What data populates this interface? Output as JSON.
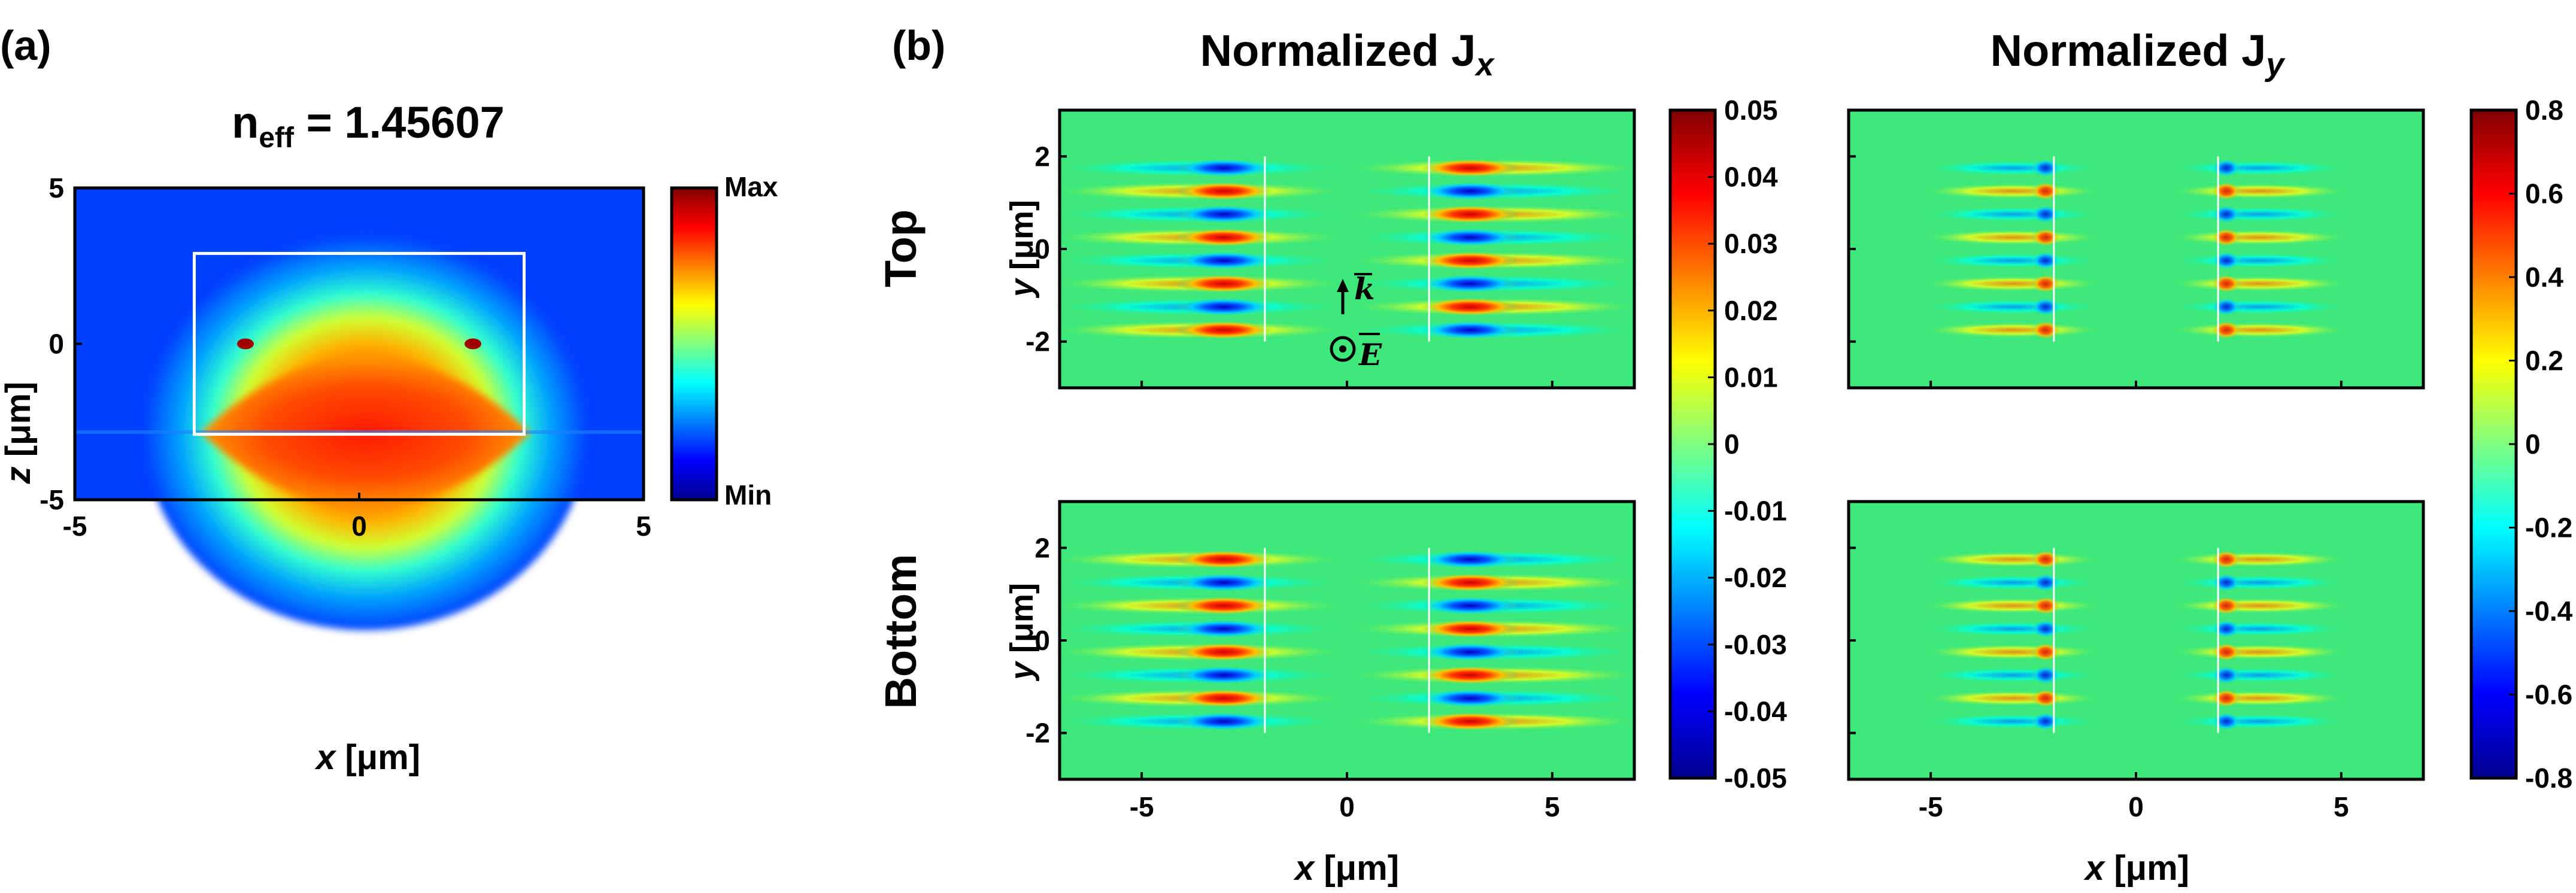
{
  "panel_a": {
    "label": "(a)",
    "title_main": "n",
    "title_sub": "eff",
    "title_value": " = 1.45607",
    "colorbar": {
      "max_label": "Max",
      "min_label": "Min"
    }
  },
  "panel_b": {
    "label": "(b)",
    "row_labels": [
      "Top",
      "Bottom"
    ],
    "col_titles": [
      {
        "main": "Normalized J",
        "sub": "x"
      },
      {
        "main": "Normalized J",
        "sub": "y"
      }
    ],
    "annotation": {
      "k": "k",
      "E": "E"
    }
  },
  "colors": {
    "jet": [
      "#00008f",
      "#0000ff",
      "#00ffff",
      "#ffff00",
      "#ff0000",
      "#800000"
    ],
    "background_field": "#3ee87a",
    "waveguide_outline": "#ffffff"
  },
  "chart_data": [
    {
      "id": "mode-profile",
      "type": "heatmap",
      "xlabel": "x",
      "ylabel": "z",
      "unit": "[μm]",
      "xlim": [
        -5,
        5
      ],
      "ylim": [
        -5,
        5
      ],
      "xticks": [
        -5,
        0,
        5
      ],
      "yticks": [
        -5,
        0,
        5
      ],
      "waveguide_box": {
        "x": [
          -2.9,
          2.9
        ],
        "z": [
          -2.9,
          2.9
        ]
      },
      "colorbar": {
        "type": "relative",
        "labels": [
          "Max",
          "Min"
        ]
      }
    },
    {
      "id": "jx-top",
      "type": "heatmap",
      "ylabel": "y",
      "unit": "[μm]",
      "xlim": [
        -7,
        7
      ],
      "ylim": [
        -3,
        3
      ],
      "yticks": [
        -2,
        0,
        2
      ],
      "field": "Jx",
      "sign": 1
    },
    {
      "id": "jy-top",
      "type": "heatmap",
      "xlim": [
        -7,
        7
      ],
      "ylim": [
        -3,
        3
      ],
      "field": "Jy",
      "sign": 1
    },
    {
      "id": "jx-bottom",
      "type": "heatmap",
      "xlabel": "x",
      "ylabel": "y",
      "unit": "[μm]",
      "xlim": [
        -7,
        7
      ],
      "ylim": [
        -3,
        3
      ],
      "xticks": [
        -5,
        0,
        5
      ],
      "yticks": [
        -2,
        0,
        2
      ],
      "field": "Jx",
      "sign": -1
    },
    {
      "id": "jy-bottom",
      "type": "heatmap",
      "xlabel": "x",
      "unit": "[μm]",
      "xlim": [
        -7,
        7
      ],
      "ylim": [
        -3,
        3
      ],
      "xticks": [
        -5,
        0,
        5
      ],
      "field": "Jy",
      "sign": -1
    },
    {
      "id": "colorbar-jx",
      "type": "heatmap",
      "range": [
        -0.05,
        0.05
      ],
      "ticks": [
        "0.05",
        "0.04",
        "0.03",
        "0.02",
        "0.01",
        "0",
        "-0.01",
        "-0.02",
        "-0.03",
        "-0.04",
        "-0.05"
      ]
    },
    {
      "id": "colorbar-jy",
      "type": "heatmap",
      "range": [
        -0.8,
        0.8
      ],
      "ticks": [
        "0.8",
        "0.6",
        "0.4",
        "0.2",
        "0",
        "-0.2",
        "-0.4",
        "-0.6",
        "-0.8"
      ]
    }
  ]
}
